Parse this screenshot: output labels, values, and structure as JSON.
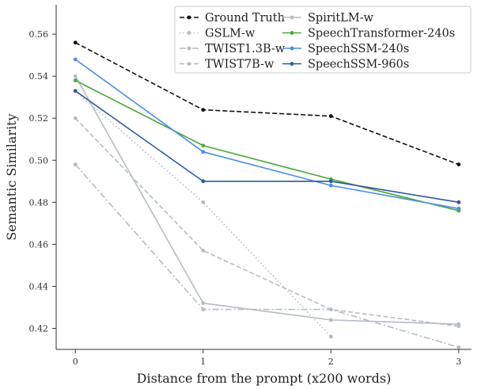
{
  "chart_data": {
    "type": "line",
    "xlabel": "Distance from the prompt (x200 words)",
    "ylabel": "Semantic Similarity",
    "x": [
      0,
      1,
      2,
      3
    ],
    "xticks": [
      "0",
      "1",
      "2",
      "3"
    ],
    "xlim": [
      -0.15,
      3.1
    ],
    "ylim": [
      0.41,
      0.574
    ],
    "yticks": [
      "0.42",
      "0.44",
      "0.46",
      "0.48",
      "0.50",
      "0.52",
      "0.54",
      "0.56"
    ],
    "ytick_values": [
      0.42,
      0.44,
      0.46,
      0.48,
      0.5,
      0.52,
      0.54,
      0.56
    ],
    "grid": false,
    "legend_position": "top-right",
    "series": [
      {
        "name": "Ground Truth",
        "x": [
          0,
          1,
          2,
          3
        ],
        "values": [
          0.556,
          0.524,
          0.521,
          0.498
        ],
        "color": "#111111",
        "dash": "dashed"
      },
      {
        "name": "GSLM-w",
        "x": [
          0,
          1,
          2
        ],
        "values": [
          0.533,
          0.48,
          0.416
        ],
        "color": "#b5bcc6",
        "dash": "dotted"
      },
      {
        "name": "TWIST1.3B-w",
        "x": [
          0,
          1,
          2,
          3
        ],
        "values": [
          0.498,
          0.429,
          0.429,
          0.411
        ],
        "color": "#b5bcc6",
        "dash": "dashdot"
      },
      {
        "name": "TWIST7B-w",
        "x": [
          0,
          1,
          2,
          3
        ],
        "values": [
          0.52,
          0.457,
          0.429,
          0.421
        ],
        "color": "#b5bcc6",
        "dash": "dashed"
      },
      {
        "name": "SpiritLM-w",
        "x": [
          0,
          1,
          2,
          3
        ],
        "values": [
          0.54,
          0.432,
          0.424,
          0.422
        ],
        "color": "#b5bcc6",
        "dash": "solid"
      },
      {
        "name": "SpeechTransformer-240s",
        "x": [
          0,
          1,
          2,
          3
        ],
        "values": [
          0.538,
          0.507,
          0.491,
          0.476
        ],
        "color": "#4aa83a",
        "dash": "solid"
      },
      {
        "name": "SpeechSSM-240s",
        "x": [
          0,
          1,
          2,
          3
        ],
        "values": [
          0.548,
          0.504,
          0.488,
          0.477
        ],
        "color": "#4a8de8",
        "dash": "solid"
      },
      {
        "name": "SpeechSSM-960s",
        "x": [
          0,
          1,
          2,
          3
        ],
        "values": [
          0.533,
          0.49,
          0.49,
          0.48
        ],
        "color": "#2a5a9c",
        "dash": "solid"
      }
    ]
  }
}
